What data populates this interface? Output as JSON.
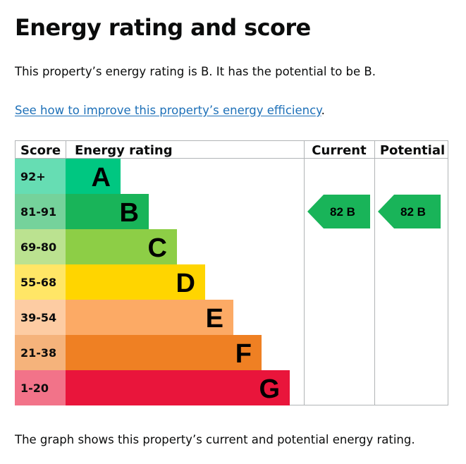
{
  "page": {
    "title": "Energy rating and score",
    "intro": "This property’s energy rating is B. It has the potential to be B.",
    "link_text": "See how to improve this property’s energy efficiency",
    "link_suffix": ".",
    "caption": "The graph shows this property’s current and potential energy rating."
  },
  "chart_data": {
    "type": "table",
    "headers": {
      "score": "Score",
      "rating": "Energy rating",
      "current": "Current",
      "potential": "Potential"
    },
    "bands": [
      {
        "letter": "A",
        "score": "92+",
        "color": "#00c781",
        "score_color": "#66ddb3"
      },
      {
        "letter": "B",
        "score": "81-91",
        "color": "#19b459",
        "score_color": "#75d29b"
      },
      {
        "letter": "C",
        "score": "69-80",
        "color": "#8dce46",
        "score_color": "#bbe290"
      },
      {
        "letter": "D",
        "score": "55-68",
        "color": "#ffd500",
        "score_color": "#ffe666"
      },
      {
        "letter": "E",
        "score": "39-54",
        "color": "#fcaa65",
        "score_color": "#fdcca3"
      },
      {
        "letter": "F",
        "score": "21-38",
        "color": "#ef8023",
        "score_color": "#f5b37b"
      },
      {
        "letter": "G",
        "score": "1-20",
        "color": "#e9153b",
        "score_color": "#f27389"
      }
    ],
    "current": {
      "score": 82,
      "band": "B",
      "label": "82  B"
    },
    "potential": {
      "score": 82,
      "band": "B",
      "label": "82  B"
    }
  }
}
